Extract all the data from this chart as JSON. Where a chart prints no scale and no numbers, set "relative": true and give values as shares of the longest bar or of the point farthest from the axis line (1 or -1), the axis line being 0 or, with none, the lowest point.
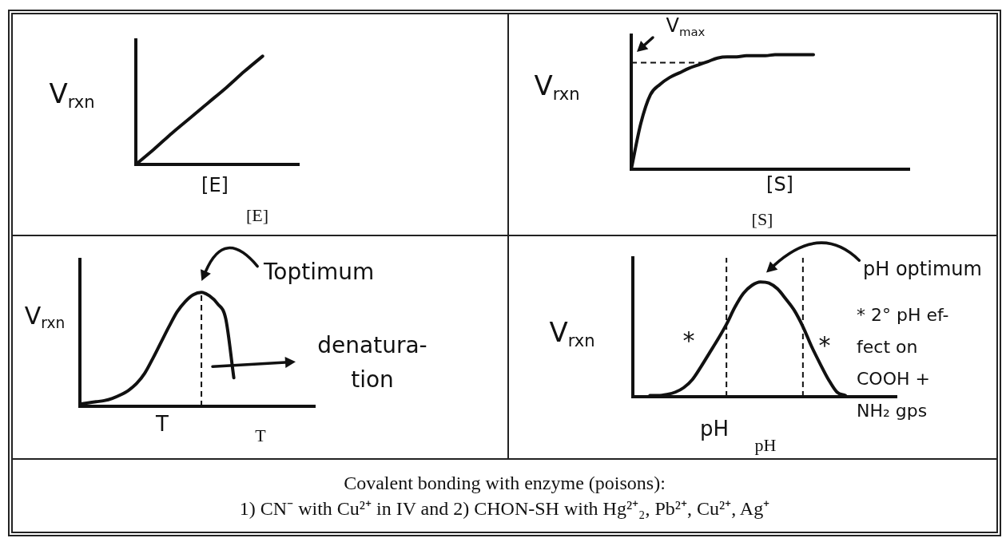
{
  "chart_data": [
    {
      "type": "line",
      "relative": true,
      "ylabel": "V$_{rxn}$",
      "xlabel": "[E]",
      "annotations": [
        "[E]"
      ],
      "categories": [
        null,
        null,
        null,
        null,
        null,
        null,
        null,
        null,
        null,
        null
      ],
      "series": [
        {
          "color": "#111111",
          "values": [
            0,
            0.14,
            0.29,
            0.43,
            0.57,
            0.71,
            0.86,
            1,
            null,
            null
          ]
        }
      ]
    },
    {
      "type": "line",
      "relative": true,
      "ylabel": "V$_{rxn}$",
      "xlabel": "[S]",
      "annotations": [
        "[S]"
      ],
      "categories": [
        null,
        null,
        null,
        null,
        null,
        null,
        null,
        null,
        null,
        null,
        null,
        null,
        null,
        null,
        null,
        null,
        null,
        null,
        null,
        null,
        null,
        null,
        null,
        null,
        null,
        null,
        null,
        null,
        null,
        null
      ],
      "series": [
        {
          "color": "#111111",
          "values": [
            0,
            0.4,
            0.65,
            0.74,
            0.8,
            0.84,
            0.88,
            0.91,
            0.94,
            0.97,
            0.98,
            0.98,
            0.99,
            0.99,
            0.99,
            1,
            1,
            1,
            1,
            1,
            null,
            null,
            null,
            null,
            null,
            null,
            null,
            null,
            null,
            null
          ]
        }
      ],
      "ref_lines": [
        {
          "axis": "y",
          "value": 0.93,
          "label": "V$_{max}$",
          "line_style": "dashed",
          "color": "#111111"
        }
      ]
    },
    {
      "type": "line",
      "relative": true,
      "ylabel": "V$_{rxn}$",
      "xlabel": "T",
      "annotations": [
        "Toptimum",
        "denatura-\ntion",
        "T"
      ],
      "categories": [
        null,
        null,
        null,
        null,
        null,
        null,
        null,
        null,
        null,
        null,
        null,
        null,
        null,
        null,
        null,
        null,
        null,
        null,
        null,
        null,
        null,
        null,
        null,
        null,
        null,
        null,
        null,
        null,
        null,
        null
      ],
      "series": [
        {
          "color": "#111111",
          "values": [
            0.02,
            0.03,
            0.04,
            0.05,
            0.07,
            0.1,
            0.14,
            0.2,
            0.29,
            0.42,
            0.56,
            0.7,
            0.83,
            0.92,
            0.98,
            1,
            0.97,
            0.9,
            0.77,
            0.25,
            null,
            null,
            null,
            null,
            null,
            null,
            null,
            null,
            null,
            null
          ]
        }
      ]
    },
    {
      "type": "line",
      "relative": true,
      "ylabel": "V$_{rxn}$",
      "xlabel": "pH",
      "annotations": [
        "pH optimum",
        "*",
        "*",
        "* 2° pH ef-\nfect on\nCOOH +\nNH₂ gps",
        "pH"
      ],
      "categories": [
        null,
        null,
        null,
        null,
        null,
        null,
        null,
        null,
        null,
        null,
        null,
        null,
        null,
        null,
        null,
        null,
        null,
        null,
        null,
        null,
        null,
        null,
        null,
        null,
        null,
        null,
        null,
        null,
        null,
        null,
        null,
        null
      ],
      "series": [
        {
          "color": "#111111",
          "values": [
            null,
            null,
            0.01,
            0.01,
            0.02,
            0.04,
            0.08,
            0.15,
            0.26,
            0.38,
            0.5,
            0.63,
            0.78,
            0.9,
            0.97,
            1,
            0.99,
            0.94,
            0.85,
            0.75,
            0.61,
            0.44,
            0.29,
            0.15,
            0.04,
            0.01,
            null,
            null,
            null,
            null,
            null,
            null
          ]
        }
      ]
    },
    {
      "type": "other",
      "title": "Covalent bonding with enzyme (poisons):",
      "subtitle": "1) CN⁻ with Cu²⁺ in IV and 2) CHON-SH with Hg²⁺₂, Pb²⁺, Cu²⁺, Ag⁺"
    }
  ]
}
